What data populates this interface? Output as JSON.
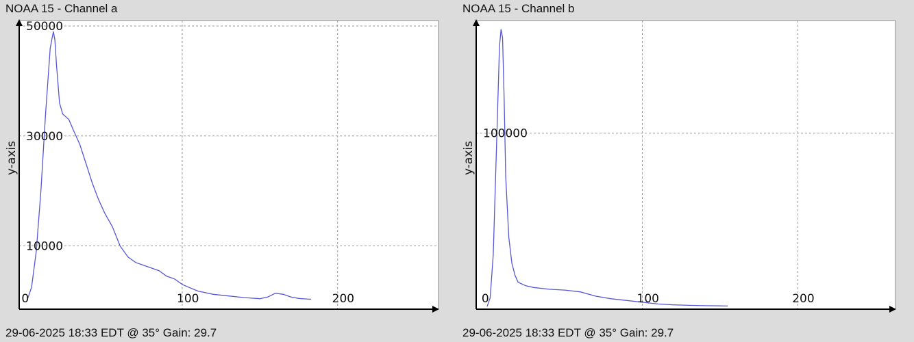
{
  "chart_data": [
    {
      "type": "line",
      "title": "NOAA 15 - Channel a",
      "footer": "29-06-2025 18:33 EDT @ 35° Gain: 29.7",
      "xlabel": "",
      "ylabel": "y-axis",
      "xlim": [
        -5,
        265
      ],
      "ylim": [
        -1500,
        51000
      ],
      "x_ticks": [
        0,
        100,
        200
      ],
      "y_ticks": [
        10000,
        30000,
        50000
      ],
      "grid": true,
      "line_color": "#5656d6",
      "series": [
        {
          "x": [
            0,
            3,
            6,
            9,
            12,
            15,
            17,
            18,
            19,
            21,
            23,
            25,
            27,
            30,
            34,
            38,
            42,
            46,
            50,
            55,
            60,
            65,
            70,
            75,
            80,
            85,
            90,
            95,
            100,
            104,
            110,
            120,
            130,
            140,
            150,
            155,
            160,
            165,
            170,
            175,
            180,
            183
          ],
          "y": [
            0,
            2500,
            9000,
            20000,
            34000,
            46000,
            49000,
            47500,
            43000,
            36000,
            34000,
            33500,
            33000,
            31000,
            28500,
            25000,
            21500,
            18500,
            16000,
            13500,
            10000,
            8000,
            7000,
            6500,
            6000,
            5500,
            4500,
            4000,
            3000,
            2500,
            1800,
            1200,
            900,
            600,
            400,
            700,
            1400,
            1200,
            700,
            450,
            350,
            300
          ]
        }
      ]
    },
    {
      "type": "line",
      "title": "NOAA 15 - Channel b",
      "footer": "29-06-2025 18:33 EDT @ 35° Gain: 29.7",
      "xlabel": "",
      "ylabel": "y-axis",
      "xlim": [
        -7,
        263
      ],
      "ylim": [
        -1500,
        165000
      ],
      "x_ticks": [
        0,
        100,
        200
      ],
      "y_ticks": [
        100000
      ],
      "grid": true,
      "line_color": "#5656d6",
      "series": [
        {
          "x": [
            0,
            2,
            4,
            6,
            8,
            9,
            10,
            11,
            12,
            14,
            16,
            18,
            20,
            25,
            30,
            40,
            50,
            60,
            70,
            80,
            90,
            100,
            110,
            120,
            130,
            140,
            150,
            155
          ],
          "y": [
            0,
            5000,
            30000,
            90000,
            150000,
            160000,
            155000,
            120000,
            75000,
            40000,
            25000,
            18000,
            14000,
            12000,
            11000,
            10000,
            9500,
            8500,
            6000,
            4500,
            3500,
            2500,
            1500,
            1000,
            700,
            500,
            400,
            300
          ]
        }
      ]
    }
  ]
}
